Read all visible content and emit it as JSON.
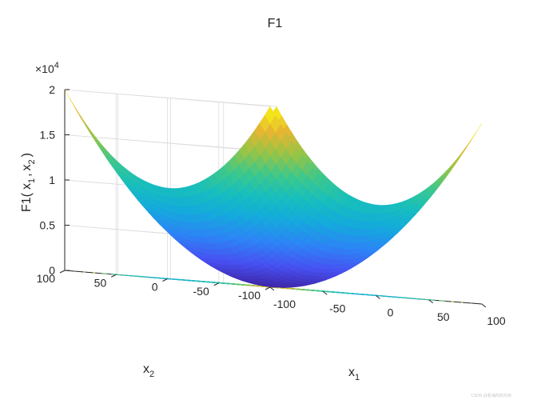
{
  "chart_data": {
    "type": "surface",
    "title": "F1",
    "function": "x1^2 + x2^2",
    "xlabel": {
      "base": "x",
      "sub": "1"
    },
    "ylabel": {
      "base": "x",
      "sub": "2"
    },
    "zlabel": {
      "prefix": "F1(",
      "x1": "x",
      "sub1": "1",
      "sep": ",",
      "x2": "x",
      "sub2": "2",
      "suffix": ")"
    },
    "xlim": [
      -100,
      100
    ],
    "ylim": [
      -100,
      100
    ],
    "zlim": [
      0,
      20000
    ],
    "z_exponent_label": {
      "times": "×10",
      "exp": "4"
    },
    "xticks": [
      -100,
      -50,
      0,
      50,
      100
    ],
    "yticks": [
      -100,
      -50,
      0,
      50,
      100
    ],
    "zticks": [
      0,
      0.5,
      1,
      1.5,
      2
    ],
    "xtick_labels": [
      "-100",
      "-50",
      "0",
      "50",
      "100"
    ],
    "ytick_labels": [
      "-100",
      "-50",
      "0",
      "50",
      "100"
    ],
    "ztick_labels": [
      "0",
      "0.5",
      "1",
      "1.5",
      "2"
    ],
    "contour_levels": [
      1500,
      3000,
      4500,
      6000,
      7500,
      9000,
      10500,
      12000,
      13500,
      15000,
      16500,
      18000
    ],
    "colormap": "parula",
    "grid": true,
    "surface_range": [
      -100,
      100
    ],
    "surface_step": 5
  },
  "watermark": "CSDN @看海的四叉树"
}
